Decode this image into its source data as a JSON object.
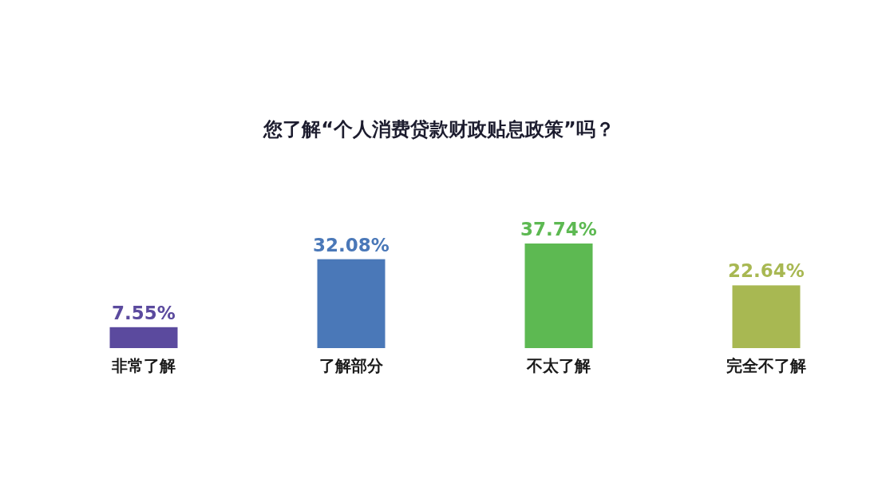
{
  "chart_data": {
    "type": "bar",
    "title": "您了解“个人消费贷款财政贴息政策”吗？",
    "categories": [
      "非常了解",
      "了解部分",
      "不太了解",
      "完全不了解"
    ],
    "values": [
      7.55,
      32.08,
      37.74,
      22.64
    ],
    "colors": [
      "#5b4a9e",
      "#4a78b8",
      "#5db952",
      "#a8b852"
    ],
    "value_labels": [
      "7.55%",
      "32.08%",
      "37.74%",
      "22.64%"
    ]
  }
}
